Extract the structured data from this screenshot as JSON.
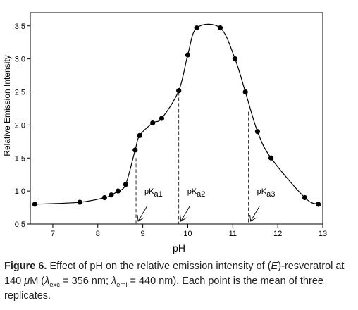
{
  "chart_data": {
    "type": "scatter",
    "xlabel": "pH",
    "ylabel": "Relative Emission Intensity",
    "xlim": [
      6.5,
      13
    ],
    "ylim": [
      0.5,
      3.7
    ],
    "xticks": [
      "7",
      "8",
      "9",
      "10",
      "11",
      "12",
      "13"
    ],
    "yticks": [
      "0,5",
      "1,0",
      "1,5",
      "2,0",
      "2,5",
      "3,0",
      "3,5"
    ],
    "grid": false,
    "legend": "none",
    "series": [
      {
        "marker": "filled-circle",
        "line": "smooth",
        "x": [
          6.6,
          7.6,
          8.15,
          8.3,
          8.45,
          8.62,
          8.83,
          8.93,
          9.22,
          9.42,
          9.8,
          10.0,
          10.2,
          10.72,
          11.05,
          11.28,
          11.55,
          11.85,
          12.6,
          12.9
        ],
        "y": [
          0.8,
          0.83,
          0.9,
          0.94,
          1.0,
          1.1,
          1.62,
          1.84,
          2.03,
          2.1,
          2.52,
          3.06,
          3.47,
          3.47,
          3.0,
          2.5,
          1.9,
          1.5,
          0.9,
          0.8
        ]
      }
    ],
    "annotations": [
      {
        "base": "pK",
        "sub": "a1",
        "x": 8.85,
        "y_top": 1.5
      },
      {
        "base": "pK",
        "sub": "a2",
        "x": 9.8,
        "y_top": 2.5
      },
      {
        "base": "pK",
        "sub": "a3",
        "x": 11.35,
        "y_top": 2.2
      }
    ]
  },
  "caption": {
    "label": "Figure 6.",
    "p1": "Effect of pH on the relative emission intensity of (",
    "p1_it": "E",
    "p2": ")-resveratrol at 140 ",
    "mu": "μ",
    "p3": "M (",
    "lambda1": "λ",
    "sub1": "exc",
    "p4": " = 356 nm; ",
    "lambda2": "λ",
    "sub2": "emi",
    "p5": " = 440 nm). Each point is the mean of three replicates."
  },
  "colors": {
    "line": "#000000",
    "marker": "#000000",
    "axis": "#000000",
    "caption": "#222222"
  }
}
